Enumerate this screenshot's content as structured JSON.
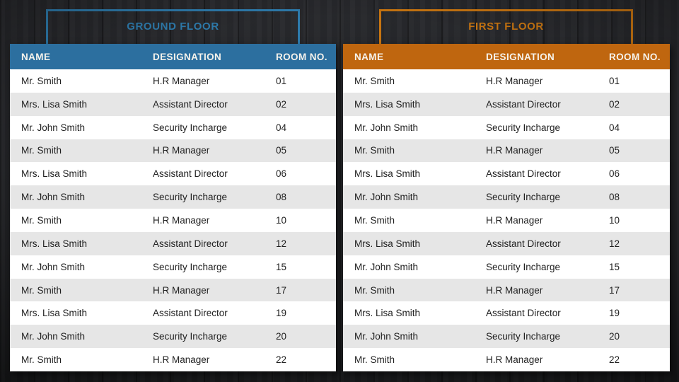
{
  "page": {
    "background_color": "#222326",
    "row_alt_color": "#e6e6e6",
    "row_base_color": "#ffffff",
    "cell_text_color": "#1f1f1f",
    "header_text_color": "#f6f3ec"
  },
  "tables": [
    {
      "id": "ground-floor",
      "title": "GROUND FLOOR",
      "accent_color": "#2e7bac",
      "header_bg_color": "#2c6f9f",
      "columns": [
        "NAME",
        "DESIGNATION",
        "ROOM NO."
      ],
      "rows": [
        {
          "name": "Mr. Smith",
          "designation": "H.R Manager",
          "room": "01"
        },
        {
          "name": "Mrs. Lisa Smith",
          "designation": "Assistant Director",
          "room": "02"
        },
        {
          "name": "Mr. John Smith",
          "designation": "Security Incharge",
          "room": "04"
        },
        {
          "name": "Mr. Smith",
          "designation": "H.R Manager",
          "room": "05"
        },
        {
          "name": "Mrs. Lisa Smith",
          "designation": "Assistant Director",
          "room": "06"
        },
        {
          "name": "Mr. John Smith",
          "designation": "Security Incharge",
          "room": "08"
        },
        {
          "name": "Mr. Smith",
          "designation": "H.R Manager",
          "room": "10"
        },
        {
          "name": "Mrs. Lisa Smith",
          "designation": "Assistant Director",
          "room": "12"
        },
        {
          "name": "Mr. John Smith",
          "designation": "Security Incharge",
          "room": "15"
        },
        {
          "name": "Mr. Smith",
          "designation": "H.R Manager",
          "room": "17"
        },
        {
          "name": "Mrs. Lisa Smith",
          "designation": "Assistant Director",
          "room": "19"
        },
        {
          "name": "Mr. John Smith",
          "designation": "Security Incharge",
          "room": "20"
        },
        {
          "name": "Mr. Smith",
          "designation": "H.R Manager",
          "room": "22"
        }
      ]
    },
    {
      "id": "first-floor",
      "title": "FIRST FLOOR",
      "accent_color": "#c87511",
      "header_bg_color": "#bf660f",
      "columns": [
        "NAME",
        "DESIGNATION",
        "ROOM NO."
      ],
      "rows": [
        {
          "name": "Mr. Smith",
          "designation": "H.R Manager",
          "room": "01"
        },
        {
          "name": "Mrs. Lisa Smith",
          "designation": "Assistant Director",
          "room": "02"
        },
        {
          "name": "Mr. John Smith",
          "designation": "Security Incharge",
          "room": "04"
        },
        {
          "name": "Mr. Smith",
          "designation": "H.R Manager",
          "room": "05"
        },
        {
          "name": "Mrs. Lisa Smith",
          "designation": "Assistant Director",
          "room": "06"
        },
        {
          "name": "Mr. John Smith",
          "designation": "Security Incharge",
          "room": "08"
        },
        {
          "name": "Mr. Smith",
          "designation": "H.R Manager",
          "room": "10"
        },
        {
          "name": "Mrs. Lisa Smith",
          "designation": "Assistant Director",
          "room": "12"
        },
        {
          "name": "Mr. John Smith",
          "designation": "Security Incharge",
          "room": "15"
        },
        {
          "name": "Mr. Smith",
          "designation": "H.R Manager",
          "room": "17"
        },
        {
          "name": "Mrs. Lisa Smith",
          "designation": "Assistant Director",
          "room": "19"
        },
        {
          "name": "Mr. John Smith",
          "designation": "Security Incharge",
          "room": "20"
        },
        {
          "name": "Mr. Smith",
          "designation": "H.R Manager",
          "room": "22"
        }
      ]
    }
  ]
}
